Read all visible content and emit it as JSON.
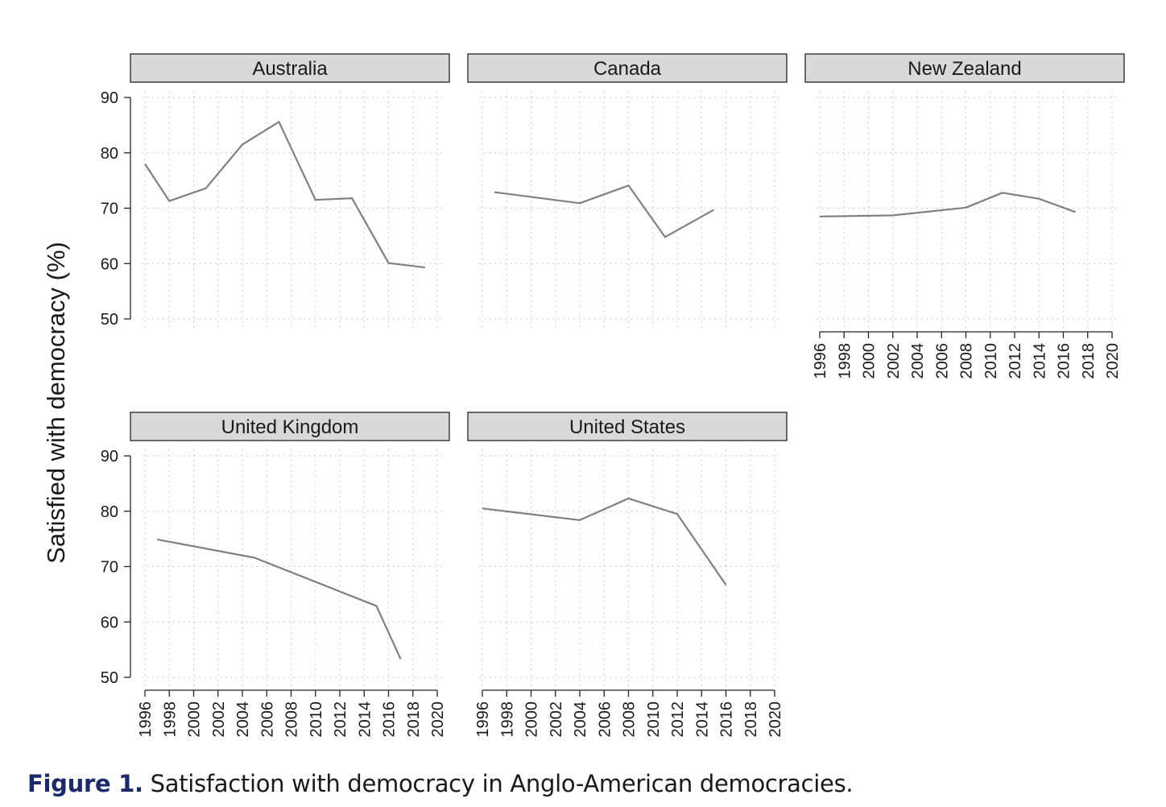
{
  "chart_data": {
    "type": "line",
    "ylabel": "Satisfied with democracy (%)",
    "ylim": [
      50,
      90
    ],
    "yticks": [
      50,
      60,
      70,
      80,
      90
    ],
    "xlim": [
      1996,
      2020
    ],
    "xticks": [
      1996,
      1998,
      2000,
      2002,
      2004,
      2006,
      2008,
      2010,
      2012,
      2014,
      2016,
      2018,
      2020
    ],
    "grid": true,
    "line_color": "#808080",
    "panels": [
      {
        "title": "Australia",
        "x": [
          1996,
          1998,
          2001,
          2004,
          2007,
          2010,
          2013,
          2016,
          2019
        ],
        "y": [
          78.0,
          71.3,
          73.6,
          81.5,
          85.6,
          71.5,
          71.8,
          60.1,
          59.3
        ]
      },
      {
        "title": "Canada",
        "x": [
          1997,
          2004,
          2008,
          2011,
          2015
        ],
        "y": [
          72.9,
          70.9,
          74.1,
          64.8,
          69.7
        ]
      },
      {
        "title": "New Zealand",
        "x": [
          1996,
          1999,
          2002,
          2005,
          2008,
          2011,
          2014,
          2017
        ],
        "y": [
          68.5,
          68.6,
          68.7,
          69.4,
          70.1,
          72.8,
          71.7,
          69.3
        ]
      },
      {
        "title": "United Kingdom",
        "x": [
          1997,
          2005,
          2015,
          2017
        ],
        "y": [
          74.9,
          71.6,
          62.9,
          53.3
        ]
      },
      {
        "title": "United States",
        "x": [
          1996,
          2004,
          2008,
          2012,
          2016
        ],
        "y": [
          80.5,
          78.4,
          82.3,
          79.5,
          66.7
        ]
      }
    ]
  },
  "caption": {
    "label": "Figure 1.",
    "text": " Satisfaction with democracy in Anglo-American democracies."
  }
}
